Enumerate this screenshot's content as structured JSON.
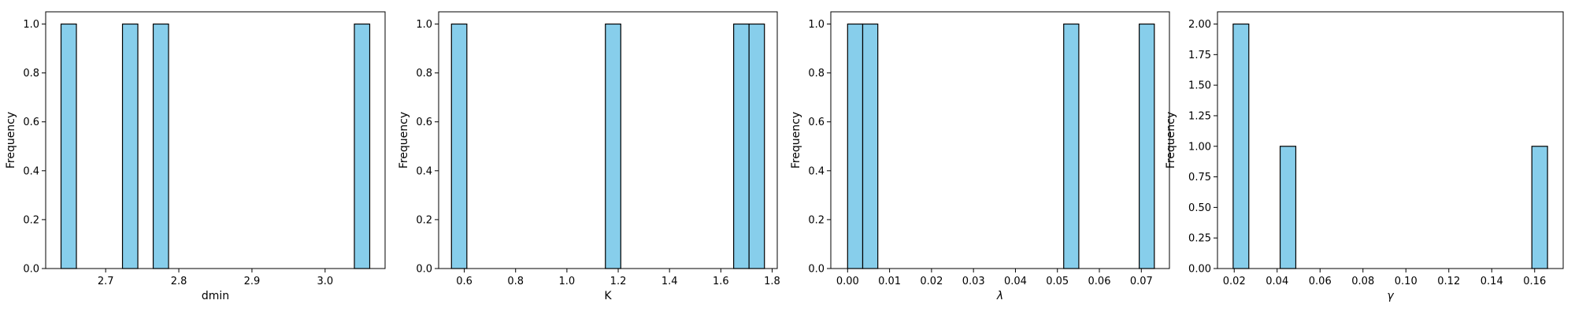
{
  "chart_data": [
    {
      "type": "bar",
      "xlabel": "dmin",
      "ylabel": "Frequency",
      "xlim": [
        2.618,
        3.082
      ],
      "ylim": [
        0,
        1.05
      ],
      "xticks": [
        2.7,
        2.8,
        2.9,
        3.0
      ],
      "xtick_labels": [
        "2.7",
        "2.8",
        "2.9",
        "3.0"
      ],
      "yticks": [
        0,
        0.2,
        0.4,
        0.6,
        0.8,
        1.0
      ],
      "ytick_labels": [
        "0.0",
        "0.2",
        "0.4",
        "0.6",
        "0.8",
        "1.0"
      ],
      "bin_width": 0.021,
      "bins": [
        {
          "x0": 2.639,
          "x1": 2.66,
          "count": 1
        },
        {
          "x0": 2.723,
          "x1": 2.744,
          "count": 1
        },
        {
          "x0": 2.765,
          "x1": 2.786,
          "count": 1
        },
        {
          "x0": 3.04,
          "x1": 3.061,
          "count": 1
        }
      ],
      "grid": false
    },
    {
      "type": "bar",
      "xlabel": "K",
      "ylabel": "Frequency",
      "xlim": [
        0.5,
        1.82
      ],
      "ylim": [
        0,
        1.05
      ],
      "xticks": [
        0.6,
        0.8,
        1.0,
        1.2,
        1.4,
        1.6,
        1.8
      ],
      "xtick_labels": [
        "0.6",
        "0.8",
        "1.0",
        "1.2",
        "1.4",
        "1.6",
        "1.8"
      ],
      "yticks": [
        0,
        0.2,
        0.4,
        0.6,
        0.8,
        1.0
      ],
      "ytick_labels": [
        "0.0",
        "0.2",
        "0.4",
        "0.6",
        "0.8",
        "1.0"
      ],
      "bin_width": 0.06,
      "bins": [
        {
          "x0": 0.55,
          "x1": 0.61,
          "count": 1
        },
        {
          "x0": 1.15,
          "x1": 1.21,
          "count": 1
        },
        {
          "x0": 1.65,
          "x1": 1.71,
          "count": 1
        },
        {
          "x0": 1.71,
          "x1": 1.77,
          "count": 1
        }
      ],
      "grid": false
    },
    {
      "type": "bar",
      "xlabel": "λ",
      "ylabel": "Frequency",
      "xlim": [
        -0.004,
        0.0767
      ],
      "ylim": [
        0,
        1.05
      ],
      "xticks": [
        0.0,
        0.01,
        0.02,
        0.03,
        0.04,
        0.05,
        0.06,
        0.07
      ],
      "xtick_labels": [
        "0.00",
        "0.01",
        "0.02",
        "0.03",
        "0.04",
        "0.05",
        "0.06",
        "0.07"
      ],
      "yticks": [
        0,
        0.2,
        0.4,
        0.6,
        0.8,
        1.0
      ],
      "ytick_labels": [
        "0.0",
        "0.2",
        "0.4",
        "0.6",
        "0.8",
        "1.0"
      ],
      "bin_width": 0.0036,
      "bins": [
        {
          "x0": 0.0,
          "x1": 0.0036,
          "count": 1
        },
        {
          "x0": 0.0036,
          "x1": 0.0072,
          "count": 1
        },
        {
          "x0": 0.0515,
          "x1": 0.0551,
          "count": 1
        },
        {
          "x0": 0.0695,
          "x1": 0.0731,
          "count": 1
        }
      ],
      "grid": false
    },
    {
      "type": "bar",
      "xlabel": "γ",
      "ylabel": "Frequency",
      "xlim": [
        0.0122,
        0.1733
      ],
      "ylim": [
        0,
        2.1
      ],
      "xticks": [
        0.02,
        0.04,
        0.06,
        0.08,
        0.1,
        0.12,
        0.14,
        0.16
      ],
      "xtick_labels": [
        "0.02",
        "0.04",
        "0.06",
        "0.08",
        "0.10",
        "0.12",
        "0.14",
        "0.16"
      ],
      "yticks": [
        0,
        0.25,
        0.5,
        0.75,
        1.0,
        1.25,
        1.5,
        1.75,
        2.0
      ],
      "ytick_labels": [
        "0.00",
        "0.25",
        "0.50",
        "0.75",
        "1.00",
        "1.25",
        "1.50",
        "1.75",
        "2.00"
      ],
      "bin_width": 0.0073,
      "bins": [
        {
          "x0": 0.0195,
          "x1": 0.0268,
          "count": 2
        },
        {
          "x0": 0.0414,
          "x1": 0.0487,
          "count": 1
        },
        {
          "x0": 0.1587,
          "x1": 0.166,
          "count": 1
        }
      ],
      "grid": false
    }
  ],
  "colors": {
    "bar_fill": "#87ceeb",
    "bar_edge": "#000000",
    "axes": "#000000",
    "background": "#ffffff"
  }
}
